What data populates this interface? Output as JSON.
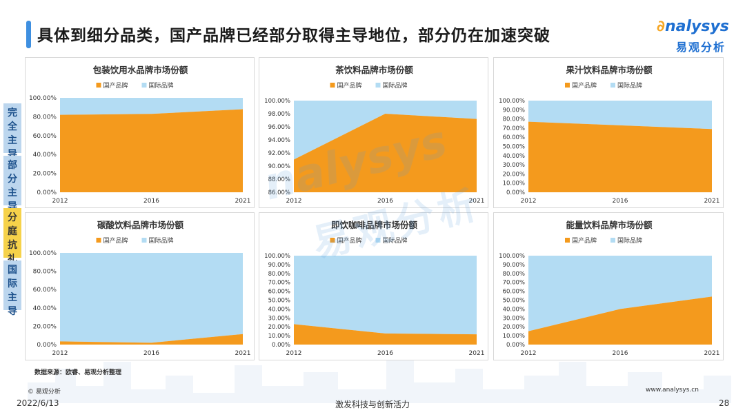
{
  "header": {
    "title": "具体到细分品类，国产品牌已经部分取得主导地位，部分仍在加速突破"
  },
  "logo": {
    "text_en": "nalysys",
    "text_cn": "易观分析"
  },
  "side_tabs": [
    "完全主导",
    "部分主导",
    "分庭抗礼",
    "国际主导"
  ],
  "active_tab_index": 2,
  "colors": {
    "domestic": "#f49a1d",
    "international": "#b3dcf3",
    "accent": "#3e8fe0",
    "brand": "#1e6fd1"
  },
  "chart_data": [
    {
      "type": "area",
      "title": "包装饮用水品牌市场份额",
      "categories": [
        "2012",
        "2016",
        "2021"
      ],
      "series": [
        {
          "name": "国产品牌",
          "values": [
            82,
            83,
            88
          ]
        },
        {
          "name": "国际品牌",
          "values": [
            18,
            17,
            12
          ]
        }
      ],
      "ylim": [
        0,
        100
      ],
      "yticks": [
        "0.00%",
        "20.00%",
        "40.00%",
        "60.00%",
        "80.00%",
        "100.00%"
      ],
      "legend": "top"
    },
    {
      "type": "area",
      "title": "茶饮料品牌市场份额",
      "categories": [
        "2012",
        "2016",
        "2021"
      ],
      "series": [
        {
          "name": "国产品牌",
          "values": [
            91,
            98,
            97.2
          ]
        },
        {
          "name": "国际品牌",
          "values": [
            9,
            2,
            2.8
          ]
        }
      ],
      "ylim": [
        86,
        100
      ],
      "yticks": [
        "86.00%",
        "88.00%",
        "90.00%",
        "92.00%",
        "94.00%",
        "96.00%",
        "98.00%",
        "100.00%"
      ],
      "legend": "top"
    },
    {
      "type": "area",
      "title": "果汁饮料品牌市场份额",
      "categories": [
        "2012",
        "2016",
        "2021"
      ],
      "series": [
        {
          "name": "国产品牌",
          "values": [
            77,
            73,
            69
          ]
        },
        {
          "name": "国际品牌",
          "values": [
            23,
            27,
            31
          ]
        }
      ],
      "ylim": [
        0,
        100
      ],
      "yticks": [
        "0.00%",
        "10.00%",
        "20.00%",
        "30.00%",
        "40.00%",
        "50.00%",
        "60.00%",
        "70.00%",
        "80.00%",
        "90.00%",
        "100.00%"
      ],
      "legend": "top"
    },
    {
      "type": "area",
      "title": "碳酸饮料品牌市场份额",
      "categories": [
        "2012",
        "2016",
        "2021"
      ],
      "series": [
        {
          "name": "国产品牌",
          "values": [
            3.5,
            2,
            11.5
          ]
        },
        {
          "name": "国际品牌",
          "values": [
            96.5,
            98,
            88.5
          ]
        }
      ],
      "ylim": [
        0,
        100
      ],
      "yticks": [
        "0.00%",
        "20.00%",
        "40.00%",
        "60.00%",
        "80.00%",
        "100.00%"
      ],
      "legend": "top"
    },
    {
      "type": "area",
      "title": "即饮咖啡品牌市场份额",
      "categories": [
        "2012",
        "2016",
        "2021"
      ],
      "series": [
        {
          "name": "国产品牌",
          "values": [
            23,
            12.5,
            11.5
          ]
        },
        {
          "name": "国际品牌",
          "values": [
            77,
            87.5,
            88.5
          ]
        }
      ],
      "ylim": [
        0,
        100
      ],
      "yticks": [
        "0.00%",
        "10.00%",
        "20.00%",
        "30.00%",
        "40.00%",
        "50.00%",
        "60.00%",
        "70.00%",
        "80.00%",
        "90.00%",
        "100.00%"
      ],
      "legend": "top"
    },
    {
      "type": "area",
      "title": "能量饮料品牌市场份额",
      "categories": [
        "2012",
        "2016",
        "2021"
      ],
      "series": [
        {
          "name": "国产品牌",
          "values": [
            15,
            40,
            54
          ]
        },
        {
          "name": "国际品牌",
          "values": [
            85,
            60,
            46
          ]
        }
      ],
      "ylim": [
        0,
        100
      ],
      "yticks": [
        "0.00%",
        "10.00%",
        "20.00%",
        "30.00%",
        "40.00%",
        "50.00%",
        "60.00%",
        "70.00%",
        "80.00%",
        "90.00%",
        "100.00%"
      ],
      "legend": "top"
    }
  ],
  "footer": {
    "source": "数据来源：欧睿、易观分析整理",
    "copyright": "© 易观分析",
    "url": "www.analysys.cn",
    "date": "2022/6/13",
    "slogan": "激发科技与创新活力",
    "page": "28"
  }
}
